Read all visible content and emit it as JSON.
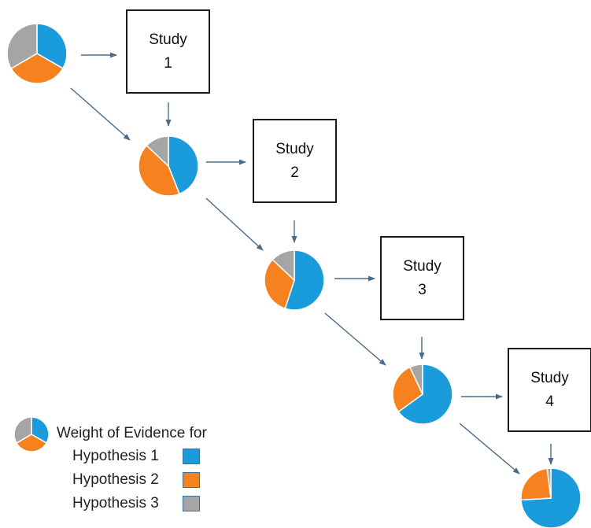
{
  "colors": {
    "hypothesis_1": "#1a9bdc",
    "hypothesis_2": "#f5821f",
    "hypothesis_3": "#a5a5a5",
    "arrow": "#4a6a8a"
  },
  "studies": [
    {
      "label": "Study",
      "number": "1"
    },
    {
      "label": "Study",
      "number": "2"
    },
    {
      "label": "Study",
      "number": "3"
    },
    {
      "label": "Study",
      "number": "4"
    }
  ],
  "pies": [
    {
      "stage": "prior",
      "hypothesis_1": 0.333,
      "hypothesis_2": 0.333,
      "hypothesis_3": 0.334
    },
    {
      "stage": "after_study_1",
      "hypothesis_1": 0.44,
      "hypothesis_2": 0.43,
      "hypothesis_3": 0.13
    },
    {
      "stage": "after_study_2",
      "hypothesis_1": 0.55,
      "hypothesis_2": 0.32,
      "hypothesis_3": 0.13
    },
    {
      "stage": "after_study_3",
      "hypothesis_1": 0.65,
      "hypothesis_2": 0.28,
      "hypothesis_3": 0.07
    },
    {
      "stage": "after_study_4",
      "hypothesis_1": 0.74,
      "hypothesis_2": 0.24,
      "hypothesis_3": 0.02
    }
  ],
  "legend": {
    "title": "Weight of Evidence for",
    "items": [
      {
        "label": "Hypothesis 1",
        "key": "hypothesis_1"
      },
      {
        "label": "Hypothesis 2",
        "key": "hypothesis_2"
      },
      {
        "label": "Hypothesis 3",
        "key": "hypothesis_3"
      }
    ]
  }
}
